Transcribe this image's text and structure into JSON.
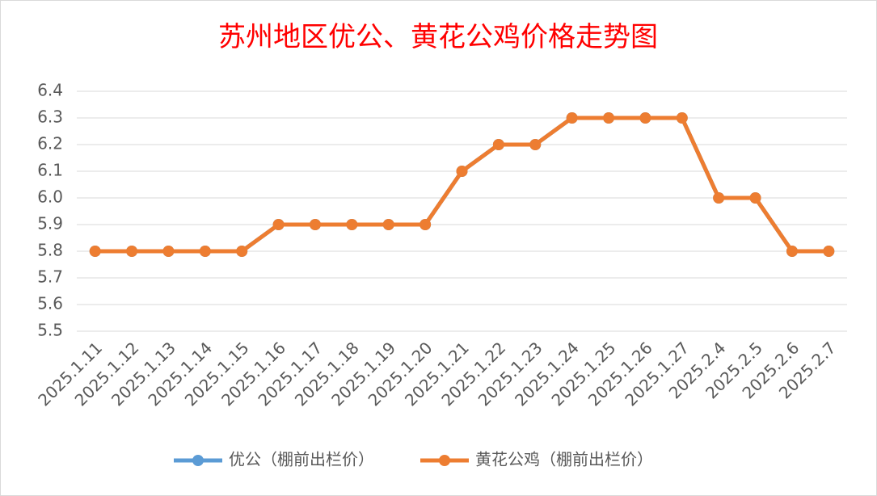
{
  "chart_data": {
    "type": "line",
    "title": "苏州地区优公、黄花公鸡价格走势图",
    "categories": [
      "2025.1.11",
      "2025.1.12",
      "2025.1.13",
      "2025.1.14",
      "2025.1.15",
      "2025.1.16",
      "2025.1.17",
      "2025.1.18",
      "2025.1.19",
      "2025.1.20",
      "2025.1.21",
      "2025.1.22",
      "2025.1.23",
      "2025.1.24",
      "2025.1.25",
      "2025.1.26",
      "2025.1.27",
      "2025.2.4",
      "2025.2.5",
      "2025.2.6",
      "2025.2.7"
    ],
    "series": [
      {
        "name": "优公（棚前出栏价）",
        "color": "#5b9bd5",
        "values": [
          5.8,
          5.8,
          5.8,
          5.8,
          5.8,
          5.9,
          5.9,
          5.9,
          5.9,
          5.9,
          6.1,
          6.2,
          6.2,
          6.3,
          6.3,
          6.3,
          6.3,
          6.0,
          6.0,
          5.8,
          5.8
        ]
      },
      {
        "name": "黄花公鸡（棚前出栏价）",
        "color": "#ed7d31",
        "values": [
          5.8,
          5.8,
          5.8,
          5.8,
          5.8,
          5.9,
          5.9,
          5.9,
          5.9,
          5.9,
          6.1,
          6.2,
          6.2,
          6.3,
          6.3,
          6.3,
          6.3,
          6.0,
          6.0,
          5.8,
          5.8
        ]
      }
    ],
    "ylim": [
      5.5,
      6.4
    ],
    "yticks": [
      5.5,
      5.6,
      5.7,
      5.8,
      5.9,
      {
        "value": 6,
        "label": "6.0"
      },
      6.1,
      6.2,
      6.3,
      6.4
    ],
    "grid": true,
    "legend": "bottom"
  }
}
